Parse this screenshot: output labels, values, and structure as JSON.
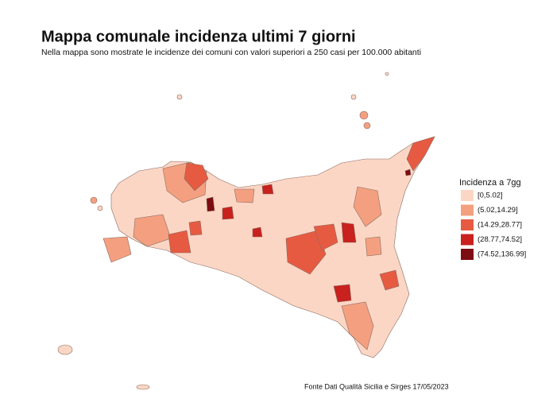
{
  "header": {
    "title": "Mappa comunale incidenza ultimi 7 giorni",
    "subtitle": "Nella mappa sono mostrate le incidenze dei comuni con valori superiori a 250 casi per 100.000 abitanti"
  },
  "legend": {
    "title": "Incidenza a 7gg",
    "items": [
      {
        "label": "[0,5.02]",
        "color": "#fcd6c5"
      },
      {
        "label": "(5.02,14.29]",
        "color": "#f4a080"
      },
      {
        "label": "(14.29,28.77]",
        "color": "#e65a42"
      },
      {
        "label": "(28.77,74.52]",
        "color": "#c8211e"
      },
      {
        "label": "(74.52,136.99]",
        "color": "#7d0b12"
      }
    ]
  },
  "source": "Fonte Dati Qualità Sicilia e Sirges 17/05/2023"
}
